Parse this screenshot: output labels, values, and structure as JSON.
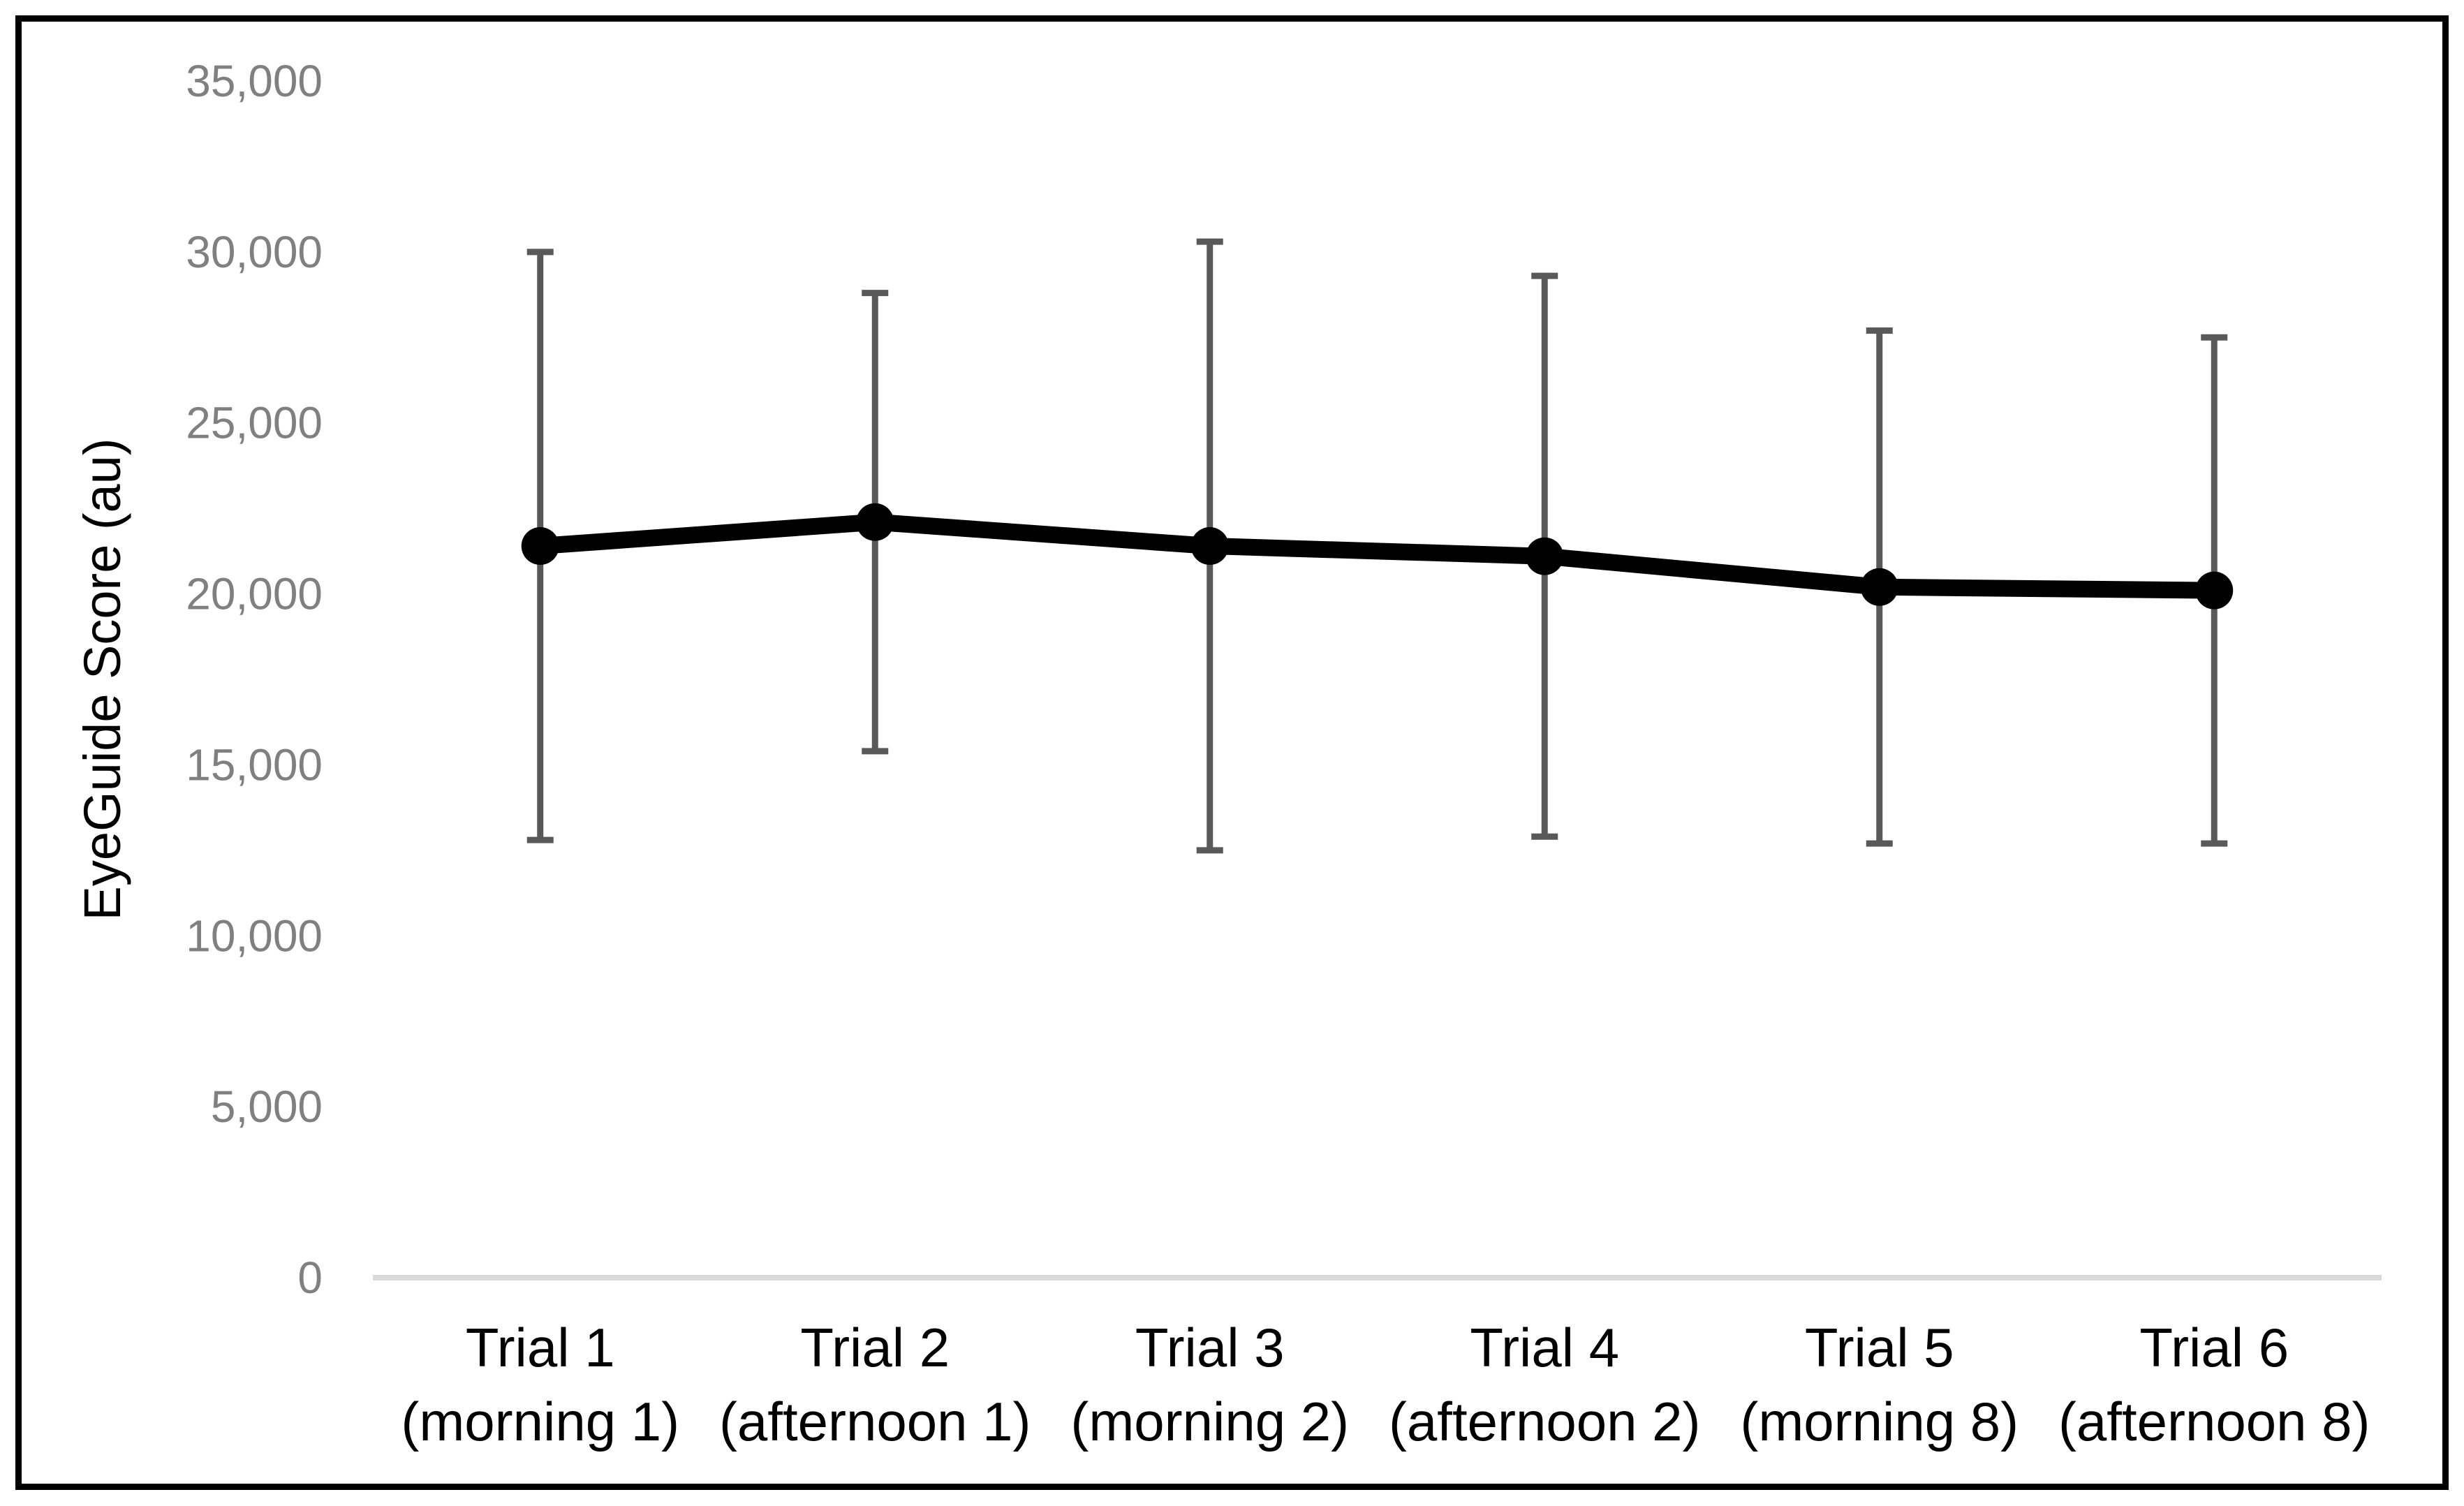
{
  "chart_data": {
    "type": "line",
    "title": "",
    "xlabel": "",
    "ylabel": "EyeGuide Score (au)",
    "ylim": [
      0,
      35000
    ],
    "ytick_step": 5000,
    "ytick_labels": [
      "0",
      "5,000",
      "10,000",
      "15,000",
      "20,000",
      "25,000",
      "30,000",
      "35,000"
    ],
    "grid": "off",
    "legend": "none",
    "categories": [
      {
        "line1": "Trial 1",
        "line2": "(morning 1)"
      },
      {
        "line1": "Trial 2",
        "line2": "(afternoon 1)"
      },
      {
        "line1": "Trial 3",
        "line2": "(morning 2)"
      },
      {
        "line1": "Trial 4",
        "line2": "(afternoon 2)"
      },
      {
        "line1": "Trial 5",
        "line2": "(morning 8)"
      },
      {
        "line1": "Trial 6",
        "line2": "(afternoon 8)"
      }
    ],
    "series": [
      {
        "name": "EyeGuide Score",
        "values": [
          21400,
          22100,
          21400,
          21100,
          20200,
          20100
        ],
        "error_upper": [
          30000,
          28800,
          30300,
          29300,
          27700,
          27500
        ],
        "error_lower": [
          12800,
          15400,
          12500,
          12900,
          12700,
          12700
        ],
        "marker": "circle",
        "line_color": "#000000",
        "error_bar_color": "#595959"
      }
    ],
    "colors": {
      "axis_line": "#d9d9d9",
      "tick_label": "#808080",
      "category_label": "#000000",
      "axis_title": "#000000",
      "chart_border": "#000000",
      "background": "#ffffff"
    }
  }
}
